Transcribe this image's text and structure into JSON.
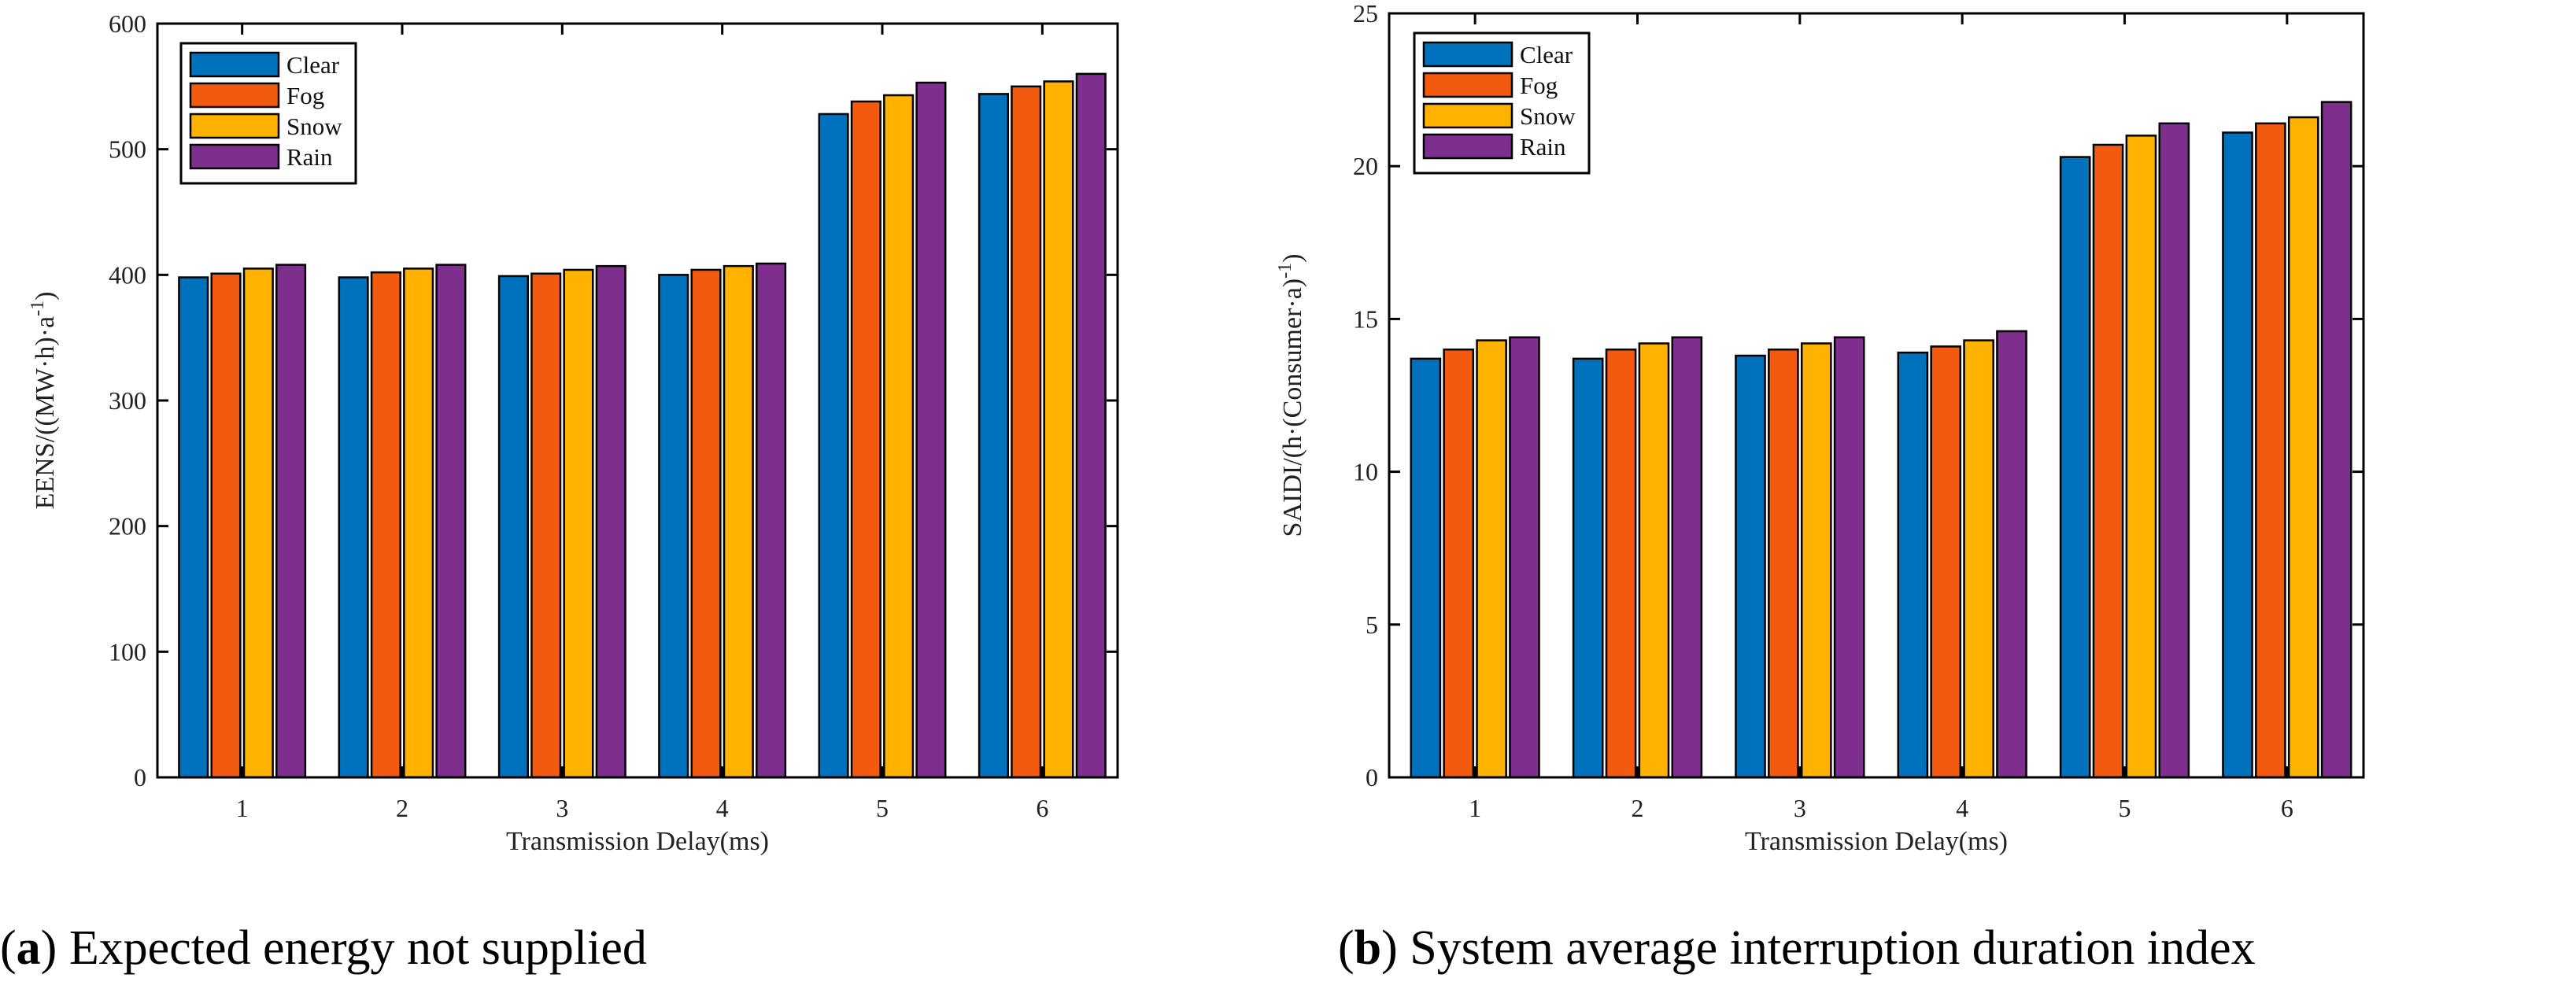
{
  "colors": {
    "Clear": "#0072bd",
    "Fog": "#f25a0f",
    "Snow": "#ffb300",
    "Rain": "#7e2f8e"
  },
  "captions": {
    "a": {
      "tag": "a",
      "text": "Expected energy not supplied"
    },
    "b": {
      "tag": "b",
      "text": "System average interruption duration index"
    }
  },
  "chart_data": [
    {
      "type": "bar",
      "categories": [
        "1",
        "2",
        "3",
        "4",
        "5",
        "6"
      ],
      "series": [
        {
          "name": "Clear",
          "values": [
            398,
            398,
            399,
            400,
            528,
            544
          ]
        },
        {
          "name": "Fog",
          "values": [
            401,
            402,
            401,
            404,
            538,
            550
          ]
        },
        {
          "name": "Snow",
          "values": [
            405,
            405,
            404,
            407,
            543,
            554
          ]
        },
        {
          "name": "Rain",
          "values": [
            408,
            408,
            407,
            409,
            553,
            560
          ]
        }
      ],
      "xlabel": "Transmission Delay(ms)",
      "ylabel": "EENS/((MW·h)·a",
      "ylabel_sup": "-1",
      "ylabel_tail": ")",
      "ylim": [
        0,
        600
      ],
      "yticks": [
        0,
        100,
        200,
        300,
        400,
        500,
        600
      ],
      "legend": "top-left",
      "grid": false
    },
    {
      "type": "bar",
      "categories": [
        "1",
        "2",
        "3",
        "4",
        "5",
        "6"
      ],
      "series": [
        {
          "name": "Clear",
          "values": [
            13.7,
            13.7,
            13.8,
            13.9,
            20.3,
            21.1
          ]
        },
        {
          "name": "Fog",
          "values": [
            14.0,
            14.0,
            14.0,
            14.1,
            20.7,
            21.4
          ]
        },
        {
          "name": "Snow",
          "values": [
            14.3,
            14.2,
            14.2,
            14.3,
            21.0,
            21.6
          ]
        },
        {
          "name": "Rain",
          "values": [
            14.4,
            14.4,
            14.4,
            14.6,
            21.4,
            22.1
          ]
        }
      ],
      "xlabel": "Transmission Delay(ms)",
      "ylabel": "SAIDI/(h·(Consumer·a)",
      "ylabel_sup": "-1",
      "ylabel_tail": ")",
      "ylim": [
        0,
        25
      ],
      "yticks": [
        0,
        5,
        10,
        15,
        20,
        25
      ],
      "legend": "top-left",
      "grid": false
    }
  ]
}
